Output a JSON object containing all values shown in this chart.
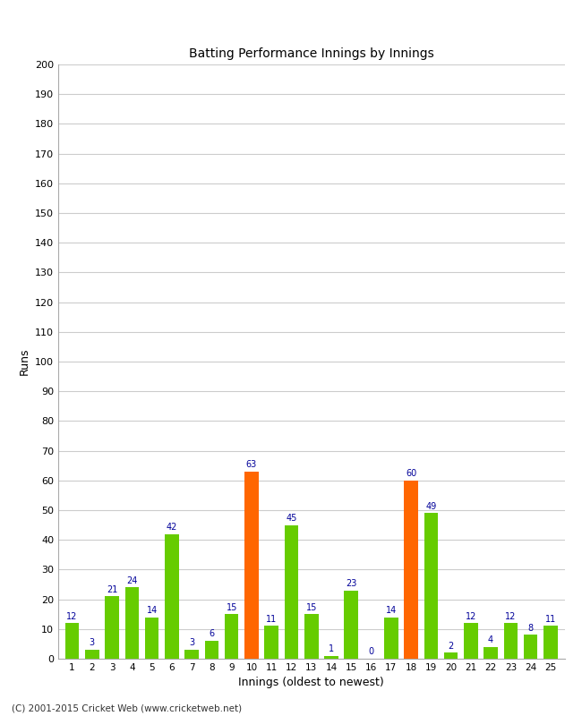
{
  "innings": [
    1,
    2,
    3,
    4,
    5,
    6,
    7,
    8,
    9,
    10,
    11,
    12,
    13,
    14,
    15,
    16,
    17,
    18,
    19,
    20,
    21,
    22,
    23,
    24,
    25
  ],
  "values": [
    12,
    3,
    21,
    24,
    14,
    42,
    3,
    6,
    15,
    63,
    11,
    45,
    15,
    1,
    23,
    0,
    14,
    60,
    49,
    2,
    12,
    4,
    12,
    8,
    11
  ],
  "colors": [
    "#66cc00",
    "#66cc00",
    "#66cc00",
    "#66cc00",
    "#66cc00",
    "#66cc00",
    "#66cc00",
    "#66cc00",
    "#66cc00",
    "#ff6600",
    "#66cc00",
    "#66cc00",
    "#66cc00",
    "#66cc00",
    "#66cc00",
    "#66cc00",
    "#66cc00",
    "#ff6600",
    "#66cc00",
    "#66cc00",
    "#66cc00",
    "#66cc00",
    "#66cc00",
    "#66cc00",
    "#66cc00"
  ],
  "title": "Batting Performance Innings by Innings",
  "xlabel": "Innings (oldest to newest)",
  "ylabel": "Runs",
  "ylim": [
    0,
    200
  ],
  "yticks": [
    0,
    10,
    20,
    30,
    40,
    50,
    60,
    70,
    80,
    90,
    100,
    110,
    120,
    130,
    140,
    150,
    160,
    170,
    180,
    190,
    200
  ],
  "label_color": "#000099",
  "background_color": "#ffffff",
  "grid_color": "#cccccc",
  "footer": "(C) 2001-2015 Cricket Web (www.cricketweb.net)"
}
